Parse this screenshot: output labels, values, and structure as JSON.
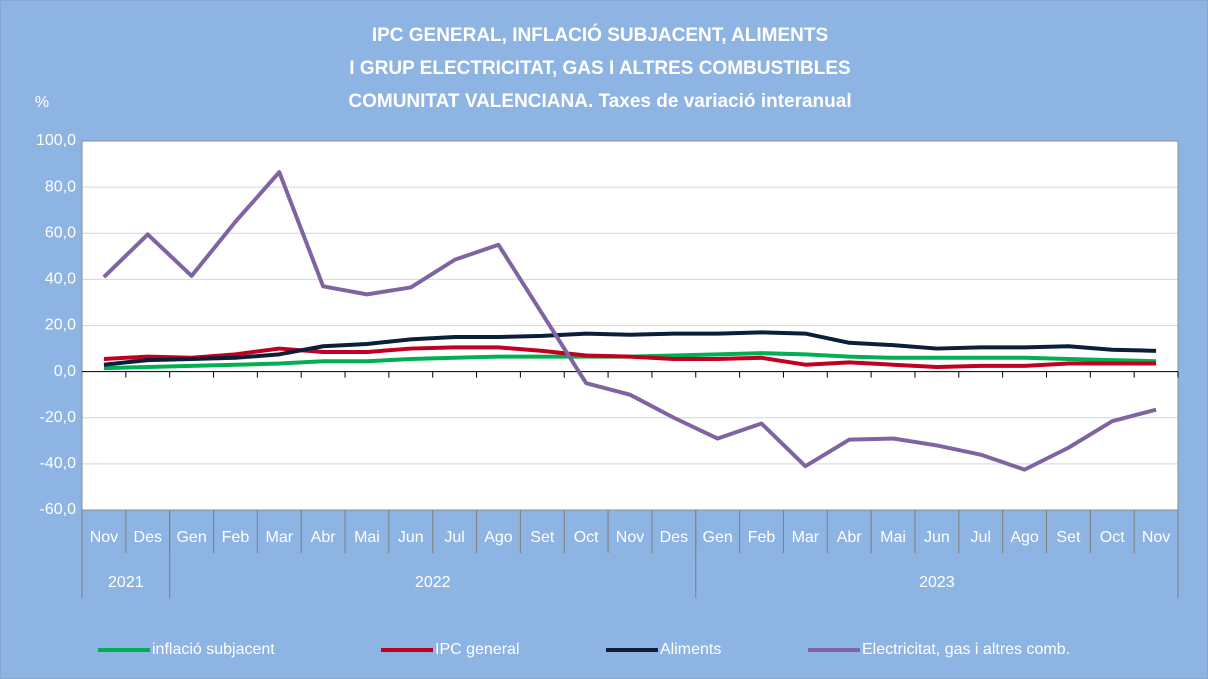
{
  "chart_data": {
    "type": "line",
    "title": [
      "IPC GENERAL, INFLACIÓ SUBJACENT,  ALIMENTS",
      "I GRUP ELECTRICITAT, GAS I ALTRES COMBUSTIBLES",
      "COMUNITAT VALENCIANA. Taxes de variació interanual"
    ],
    "y_label": "%",
    "categories": [
      "Nov",
      "Des",
      "Gen",
      "Feb",
      "Mar",
      "Abr",
      "Mai",
      "Jun",
      "Jul",
      "Ago",
      "Set",
      "Oct",
      "Nov",
      "Des",
      "Gen",
      "Feb",
      "Mar",
      "Abr",
      "Mai",
      "Jun",
      "Jul",
      "Ago",
      "Set",
      "Oct",
      "Nov"
    ],
    "groups": [
      {
        "label": "2021",
        "categories": 2
      },
      {
        "label": "2022",
        "categories": 12
      },
      {
        "label": "2023",
        "categories": 11
      }
    ],
    "series": [
      {
        "name": "inflació subjacent",
        "color": "#00b050",
        "values": [
          1.5,
          2,
          2.5,
          3,
          3.5,
          4.5,
          4.5,
          5.5,
          6,
          6.5,
          6.5,
          6.5,
          6.5,
          7,
          7.5,
          8,
          7.5,
          6.5,
          6,
          6,
          6,
          6,
          5.5,
          5,
          4.5
        ]
      },
      {
        "name": "IPC general",
        "color": "#c00020",
        "values": [
          5.5,
          6.5,
          6,
          7.5,
          10,
          8.5,
          8.5,
          10,
          10.5,
          10.5,
          9,
          7,
          6.5,
          5.5,
          5.5,
          6,
          3,
          4,
          3,
          2,
          2.5,
          2.5,
          3.5,
          3.5,
          3.5
        ]
      },
      {
        "name": "Aliments",
        "color": "#0b1f3a",
        "values": [
          3,
          5,
          5.5,
          6,
          7.5,
          11,
          12,
          14,
          15,
          15,
          15.5,
          16.5,
          16,
          16.5,
          16.5,
          17,
          16.5,
          12.5,
          11.5,
          10,
          10.5,
          10.5,
          11,
          9.5,
          9
        ]
      },
      {
        "name": "Electricitat, gas i altres comb.",
        "color": "#8064a2",
        "values": [
          41,
          59.5,
          41.5,
          65,
          86.5,
          37,
          33.5,
          36.5,
          48.5,
          55,
          25,
          -5,
          -10,
          -20,
          -29,
          -22.5,
          -41,
          -29.5,
          -29,
          -32,
          -36,
          -42.5,
          -33,
          -21.5,
          -16.5
        ]
      }
    ],
    "ylim": [
      -60,
      100
    ],
    "yticks": [
      {
        "value": 100,
        "label": "100,0"
      },
      {
        "value": 80,
        "label": "80,0"
      },
      {
        "value": 60,
        "label": "60,0"
      },
      {
        "value": 40,
        "label": "40,0"
      },
      {
        "value": 20,
        "label": "20,0"
      },
      {
        "value": 0,
        "label": "0,0"
      },
      {
        "value": -20,
        "label": "-20,0"
      },
      {
        "value": -40,
        "label": "-40,0"
      },
      {
        "value": -60,
        "label": "-60,0"
      }
    ],
    "grid": true,
    "legend": "bottom"
  }
}
